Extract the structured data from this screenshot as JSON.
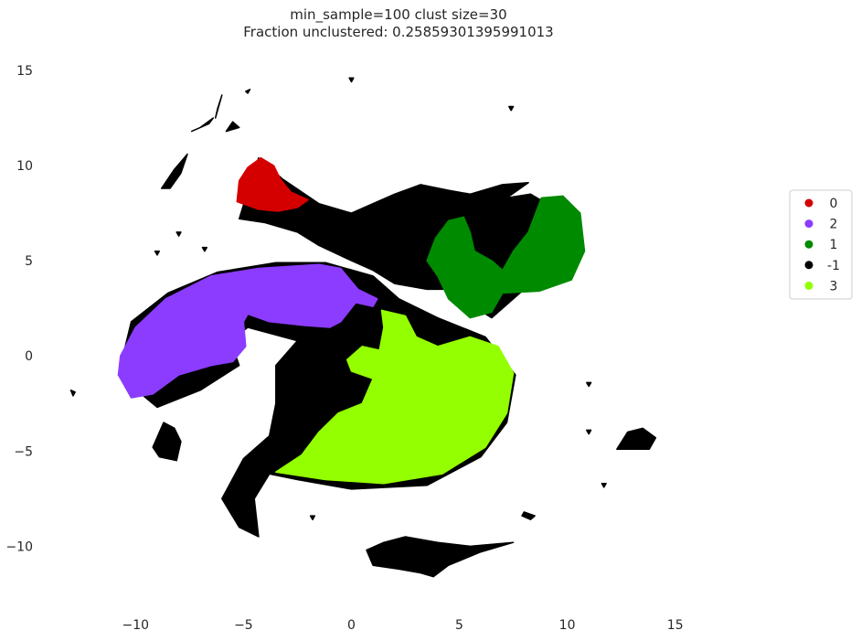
{
  "chart_data": {
    "type": "scatter",
    "title_line1": "min_sample=100 clust size=30",
    "title_line2": "Fraction unclustered: 0.25859301395991013",
    "xlabel": "",
    "ylabel": "",
    "xlim": [
      -14.8,
      19.8
    ],
    "ylim": [
      -13.2,
      16.2
    ],
    "x_ticks": [
      -10,
      -5,
      0,
      5,
      10,
      15
    ],
    "x_tick_labels": [
      "−10",
      "−5",
      "0",
      "5",
      "10",
      "15"
    ],
    "y_ticks": [
      -10,
      -5,
      0,
      5,
      10,
      15
    ],
    "y_tick_labels": [
      "−10",
      "−5",
      "0",
      "5",
      "10",
      "15"
    ],
    "grid": false,
    "legend_position": "right",
    "legend": [
      {
        "label": "0",
        "color": "#d40000"
      },
      {
        "label": "2",
        "color": "#8c3cff"
      },
      {
        "label": "1",
        "color": "#008a00"
      },
      {
        "label": "-1",
        "color": "#000000"
      },
      {
        "label": "3",
        "color": "#93ff00"
      }
    ],
    "series": [
      {
        "name": "-1",
        "color": "#000000",
        "regions": [
          [
            [
              -10.8,
              -1.0
            ],
            [
              -10.2,
              1.8
            ],
            [
              -8.5,
              3.3
            ],
            [
              -6.2,
              4.4
            ],
            [
              -3.5,
              4.9
            ],
            [
              -1.2,
              4.9
            ],
            [
              1.0,
              4.2
            ],
            [
              2.2,
              3.0
            ],
            [
              4.0,
              2.0
            ],
            [
              6.2,
              1.0
            ],
            [
              7.6,
              -1.0
            ],
            [
              7.2,
              -3.5
            ],
            [
              6.0,
              -5.3
            ],
            [
              3.5,
              -6.8
            ],
            [
              0.0,
              -7.0
            ],
            [
              -2.5,
              -6.5
            ],
            [
              -3.8,
              -6.2
            ],
            [
              -4.5,
              -7.5
            ],
            [
              -4.3,
              -9.5
            ],
            [
              -5.2,
              -9.0
            ],
            [
              -6.0,
              -7.5
            ],
            [
              -5.0,
              -5.4
            ],
            [
              -3.8,
              -4.2
            ],
            [
              -3.5,
              -2.5
            ],
            [
              -3.5,
              -0.5
            ],
            [
              -2.5,
              0.8
            ],
            [
              -4.8,
              1.5
            ],
            [
              -5.6,
              0.8
            ],
            [
              -5.2,
              -0.5
            ],
            [
              -7.0,
              -1.8
            ],
            [
              -9.0,
              -2.7
            ]
          ],
          [
            [
              -4.9,
              8.3
            ],
            [
              -4.3,
              10.4
            ],
            [
              -3.2,
              9.3
            ],
            [
              -1.5,
              8.0
            ],
            [
              0.0,
              7.5
            ],
            [
              2.0,
              8.5
            ],
            [
              3.2,
              9.0
            ],
            [
              4.5,
              8.7
            ],
            [
              5.5,
              8.5
            ],
            [
              7.0,
              9.0
            ],
            [
              8.2,
              9.1
            ],
            [
              7.2,
              8.3
            ],
            [
              8.3,
              8.5
            ],
            [
              9.8,
              7.5
            ],
            [
              10.7,
              5.5
            ],
            [
              9.5,
              4.0
            ],
            [
              8.0,
              3.5
            ],
            [
              6.5,
              2.0
            ],
            [
              5.8,
              2.5
            ],
            [
              4.5,
              3.5
            ],
            [
              3.5,
              3.5
            ],
            [
              2.0,
              3.8
            ],
            [
              1.0,
              4.5
            ],
            [
              0.0,
              5.0
            ],
            [
              -1.5,
              5.8
            ],
            [
              -2.5,
              6.5
            ],
            [
              -4.0,
              7.0
            ],
            [
              -5.2,
              7.2
            ]
          ],
          [
            [
              -1.5,
              6.0
            ],
            [
              -2.8,
              6.7
            ],
            [
              -3.8,
              7.2
            ],
            [
              -2.5,
              8.0
            ],
            [
              -1.0,
              7.2
            ]
          ],
          [
            [
              -8.7,
              -3.5
            ],
            [
              -8.2,
              -3.8
            ],
            [
              -7.9,
              -4.5
            ],
            [
              -8.1,
              -5.5
            ],
            [
              -8.9,
              -5.3
            ],
            [
              -9.2,
              -4.8
            ]
          ],
          [
            [
              12.3,
              -4.9
            ],
            [
              12.8,
              -4.0
            ],
            [
              13.5,
              -3.8
            ],
            [
              14.1,
              -4.3
            ],
            [
              13.8,
              -4.9
            ]
          ],
          [
            [
              0.7,
              -10.2
            ],
            [
              1.5,
              -9.8
            ],
            [
              2.5,
              -9.5
            ],
            [
              4.0,
              -9.8
            ],
            [
              5.5,
              -10.0
            ],
            [
              7.5,
              -9.8
            ],
            [
              6.0,
              -10.3
            ],
            [
              4.5,
              -11.0
            ],
            [
              3.8,
              -11.6
            ],
            [
              3.2,
              -11.4
            ],
            [
              2.2,
              -11.2
            ],
            [
              1.0,
              -11.0
            ]
          ],
          [
            [
              -8.8,
              8.8
            ],
            [
              -8.2,
              9.8
            ],
            [
              -7.6,
              10.6
            ],
            [
              -7.9,
              9.6
            ],
            [
              -8.4,
              8.8
            ]
          ],
          [
            [
              -7.4,
              11.8
            ],
            [
              -6.6,
              12.2
            ],
            [
              -6.4,
              12.5
            ],
            [
              -7.0,
              12.0
            ]
          ],
          [
            [
              -6.3,
              12.5
            ],
            [
              -6.0,
              13.7
            ],
            [
              -6.2,
              13.0
            ]
          ],
          [
            [
              -5.8,
              11.8
            ],
            [
              -5.2,
              12.0
            ],
            [
              -5.5,
              12.3
            ]
          ],
          [
            [
              -4.9,
              13.9
            ],
            [
              -4.7,
              14.0
            ],
            [
              -4.8,
              13.8
            ]
          ],
          [
            [
              -13.0,
              -1.8
            ],
            [
              -12.8,
              -1.9
            ],
            [
              -12.9,
              -2.1
            ]
          ],
          [
            [
              -9.1,
              5.5
            ],
            [
              -8.9,
              5.5
            ],
            [
              -9.0,
              5.3
            ]
          ],
          [
            [
              -6.9,
              5.7
            ],
            [
              -6.7,
              5.7
            ],
            [
              -6.8,
              5.5
            ]
          ],
          [
            [
              -8.1,
              6.5
            ],
            [
              -7.9,
              6.5
            ],
            [
              -8.0,
              6.3
            ]
          ],
          [
            [
              -0.1,
              14.6
            ],
            [
              0.1,
              14.6
            ],
            [
              0.0,
              14.4
            ]
          ],
          [
            [
              7.3,
              13.1
            ],
            [
              7.5,
              13.1
            ],
            [
              7.4,
              12.9
            ]
          ],
          [
            [
              10.9,
              -1.4
            ],
            [
              11.1,
              -1.4
            ],
            [
              11.0,
              -1.6
            ]
          ],
          [
            [
              10.9,
              -3.9
            ],
            [
              11.1,
              -3.9
            ],
            [
              11.0,
              -4.1
            ]
          ],
          [
            [
              11.6,
              -6.7
            ],
            [
              11.8,
              -6.7
            ],
            [
              11.7,
              -6.9
            ]
          ],
          [
            [
              8.0,
              -8.2
            ],
            [
              8.5,
              -8.4
            ],
            [
              8.3,
              -8.6
            ],
            [
              7.9,
              -8.4
            ]
          ],
          [
            [
              -1.9,
              -8.4
            ],
            [
              -1.7,
              -8.4
            ],
            [
              -1.8,
              -8.6
            ]
          ]
        ]
      },
      {
        "name": "0",
        "color": "#d40000",
        "regions": [
          [
            [
              -5.3,
              8.1
            ],
            [
              -5.2,
              9.2
            ],
            [
              -4.8,
              9.9
            ],
            [
              -4.2,
              10.4
            ],
            [
              -3.6,
              10.0
            ],
            [
              -3.3,
              9.3
            ],
            [
              -2.8,
              8.6
            ],
            [
              -2.0,
              8.2
            ],
            [
              -2.5,
              7.8
            ],
            [
              -3.4,
              7.6
            ],
            [
              -4.3,
              7.7
            ]
          ]
        ]
      },
      {
        "name": "2",
        "color": "#8c3cff",
        "regions": [
          [
            [
              -10.8,
              -1.0
            ],
            [
              -10.7,
              0.0
            ],
            [
              -10.0,
              1.5
            ],
            [
              -8.6,
              3.0
            ],
            [
              -6.5,
              4.2
            ],
            [
              -4.3,
              4.6
            ],
            [
              -1.5,
              4.8
            ],
            [
              -0.5,
              4.6
            ],
            [
              0.3,
              3.5
            ],
            [
              1.2,
              3.0
            ],
            [
              1.0,
              2.6
            ],
            [
              0.2,
              2.8
            ],
            [
              -0.5,
              1.8
            ],
            [
              -1.0,
              1.5
            ],
            [
              -2.2,
              1.6
            ],
            [
              -3.8,
              1.8
            ],
            [
              -4.8,
              2.2
            ],
            [
              -5.0,
              1.8
            ],
            [
              -4.9,
              0.5
            ],
            [
              -5.5,
              -0.3
            ],
            [
              -6.5,
              -0.5
            ],
            [
              -8.0,
              -1.0
            ],
            [
              -9.2,
              -2.0
            ],
            [
              -10.2,
              -2.2
            ]
          ]
        ]
      },
      {
        "name": "1",
        "color": "#008a00",
        "regions": [
          [
            [
              3.5,
              5.0
            ],
            [
              3.9,
              6.2
            ],
            [
              4.5,
              7.1
            ],
            [
              5.2,
              7.3
            ],
            [
              5.5,
              6.5
            ],
            [
              5.7,
              5.5
            ],
            [
              6.5,
              5.0
            ],
            [
              7.0,
              4.5
            ],
            [
              7.5,
              5.5
            ],
            [
              8.2,
              6.5
            ],
            [
              8.8,
              8.3
            ],
            [
              9.8,
              8.4
            ],
            [
              10.6,
              7.5
            ],
            [
              10.8,
              5.5
            ],
            [
              10.2,
              4.0
            ],
            [
              8.7,
              3.4
            ],
            [
              7.0,
              3.3
            ],
            [
              6.5,
              2.3
            ],
            [
              5.5,
              2.0
            ],
            [
              4.5,
              3.0
            ],
            [
              4.0,
              4.2
            ]
          ]
        ]
      },
      {
        "name": "3",
        "color": "#93ff00",
        "regions": [
          [
            [
              1.4,
              2.4
            ],
            [
              2.5,
              2.1
            ],
            [
              3.0,
              1.0
            ],
            [
              4.0,
              0.5
            ],
            [
              5.5,
              1.0
            ],
            [
              6.8,
              0.5
            ],
            [
              7.5,
              -0.9
            ],
            [
              7.2,
              -3.0
            ],
            [
              6.2,
              -4.8
            ],
            [
              4.2,
              -6.2
            ],
            [
              1.5,
              -6.7
            ],
            [
              -1.2,
              -6.5
            ],
            [
              -3.5,
              -6.1
            ],
            [
              -2.3,
              -5.2
            ],
            [
              -1.5,
              -4.0
            ],
            [
              -0.6,
              -3.0
            ],
            [
              0.5,
              -2.5
            ],
            [
              1.0,
              -1.2
            ],
            [
              0.0,
              -0.8
            ],
            [
              -0.2,
              -0.2
            ],
            [
              0.5,
              0.5
            ],
            [
              1.3,
              0.3
            ],
            [
              1.5,
              1.5
            ]
          ]
        ]
      }
    ]
  }
}
